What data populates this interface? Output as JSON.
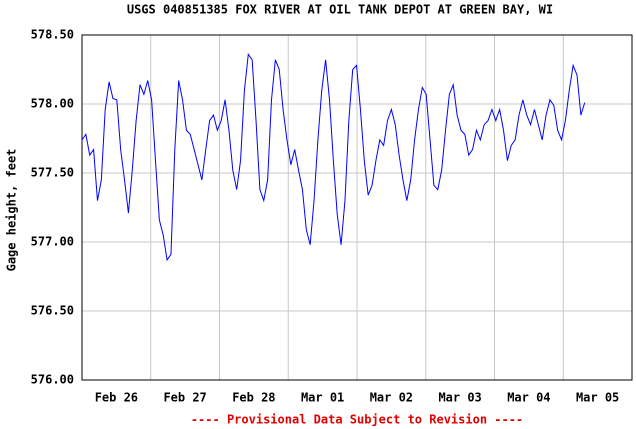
{
  "chart_data": {
    "type": "line",
    "title": "USGS 040851385 FOX RIVER AT OIL TANK DEPOT AT GREEN BAY, WI",
    "y_label": "Gage height, feet",
    "footer": "---- Provisional Data Subject to Revision ----",
    "xlim": [
      0,
      192
    ],
    "xticks": [
      {
        "value": 12,
        "label": "Feb 26"
      },
      {
        "value": 36,
        "label": "Feb 27"
      },
      {
        "value": 60,
        "label": "Feb 28"
      },
      {
        "value": 84,
        "label": "Mar 01"
      },
      {
        "value": 108,
        "label": "Mar 02"
      },
      {
        "value": 132,
        "label": "Mar 03"
      },
      {
        "value": 156,
        "label": "Mar 04"
      },
      {
        "value": 180,
        "label": "Mar 05"
      }
    ],
    "ylim": [
      576,
      578.5
    ],
    "yticks": [
      {
        "value": 576,
        "label": "576.00"
      },
      {
        "value": 576.5,
        "label": "576.50"
      },
      {
        "value": 577,
        "label": "577.00"
      },
      {
        "value": 577.5,
        "label": "577.50"
      },
      {
        "value": 578,
        "label": "578.00"
      },
      {
        "value": 578.5,
        "label": "578.50"
      }
    ],
    "grid": true,
    "series": [
      {
        "color": "#0000ff",
        "x": [
          0,
          1.35,
          2.7,
          4.05,
          5.4,
          6.75,
          8.1,
          9.45,
          10.8,
          12.15,
          13.5,
          14.85,
          16.2,
          17.55,
          18.9,
          20.25,
          21.6,
          22.95,
          24.3,
          25.65,
          27,
          28.35,
          29.7,
          31.05,
          32.4,
          33.75,
          35.1,
          36.45,
          37.8,
          39.15,
          40.5,
          41.85,
          43.2,
          44.55,
          45.9,
          47.25,
          48.6,
          49.95,
          51.3,
          52.65,
          54,
          55.35,
          56.7,
          58.05,
          59.4,
          60.75,
          62.1,
          63.45,
          64.8,
          66.15,
          67.5,
          68.85,
          70.2,
          71.55,
          72.9,
          74.25,
          75.6,
          76.95,
          78.3,
          79.65,
          81,
          82.35,
          83.7,
          85.05,
          86.4,
          87.75,
          89.1,
          90.45,
          91.8,
          93.15,
          94.5,
          95.85,
          97.2,
          98.55,
          99.9,
          101.25,
          102.6,
          103.95,
          105.3,
          106.65,
          108,
          109.35,
          110.7,
          112.05,
          113.4,
          114.75,
          116.1,
          117.45,
          118.8,
          120.15,
          121.5,
          122.85,
          124.2,
          125.55,
          126.9,
          128.25,
          129.6,
          130.95,
          132.3,
          133.65,
          135,
          136.35,
          137.7,
          139.05,
          140.4,
          141.75,
          143.1,
          144.45,
          145.8,
          147.15,
          148.5,
          149.85,
          151.2,
          152.55,
          153.9,
          155.25,
          156.6,
          157.95,
          159.3,
          160.65,
          162,
          163.35,
          164.7,
          166.05,
          167.4,
          168.75,
          170.1,
          171.45,
          172.8,
          174.15,
          175.5
        ],
        "values": [
          577.74,
          577.78,
          577.63,
          577.67,
          577.3,
          577.45,
          577.96,
          578.16,
          578.04,
          578.03,
          577.67,
          577.45,
          577.21,
          577.52,
          577.88,
          578.14,
          578.07,
          578.17,
          578.03,
          577.59,
          577.16,
          577.05,
          576.87,
          576.91,
          577.67,
          578.17,
          578.03,
          577.81,
          577.78,
          577.67,
          577.56,
          577.45,
          577.67,
          577.88,
          577.92,
          577.81,
          577.88,
          578.03,
          577.81,
          577.52,
          577.38,
          577.59,
          578.1,
          578.36,
          578.32,
          577.88,
          577.38,
          577.3,
          577.45,
          578.03,
          578.32,
          578.25,
          577.96,
          577.74,
          577.56,
          577.67,
          577.52,
          577.38,
          577.09,
          576.98,
          577.3,
          577.74,
          578.1,
          578.32,
          578.03,
          577.59,
          577.2,
          576.98,
          577.3,
          577.88,
          578.25,
          578.28,
          577.96,
          577.59,
          577.34,
          577.41,
          577.59,
          577.74,
          577.7,
          577.88,
          577.96,
          577.85,
          577.63,
          577.45,
          577.3,
          577.45,
          577.74,
          577.96,
          578.12,
          578.07,
          577.74,
          577.41,
          577.38,
          577.52,
          577.81,
          578.07,
          578.14,
          577.92,
          577.81,
          577.78,
          577.63,
          577.67,
          577.81,
          577.74,
          577.85,
          577.88,
          577.96,
          577.88,
          577.96,
          577.81,
          577.59,
          577.7,
          577.74,
          577.92,
          578.03,
          577.92,
          577.85,
          577.96,
          577.85,
          577.74,
          577.92,
          578.03,
          577.99,
          577.81,
          577.74,
          577.88,
          578.1,
          578.28,
          578.21,
          577.92,
          578.01
        ]
      }
    ]
  }
}
